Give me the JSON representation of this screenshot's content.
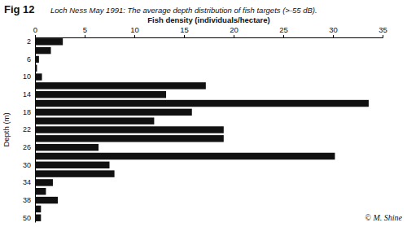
{
  "chart_data": {
    "type": "bar",
    "orientation": "horizontal",
    "title": "Fig 12",
    "subtitle": "Loch Ness May 1991: The average depth distribution of fish targets (>-55 dB).",
    "x_label": "Fish density (individuals/hectare)",
    "y_label": "Depth (m)",
    "annotation": "© M. Shine",
    "categories": [
      "2",
      null,
      "6",
      null,
      "10",
      null,
      "14",
      null,
      "18",
      null,
      "22",
      null,
      "26",
      null,
      "30",
      null,
      "34",
      null,
      "38",
      null,
      "50"
    ],
    "values": [
      2.8,
      1.6,
      0.4,
      0.2,
      0.7,
      17.2,
      13.2,
      33.6,
      15.8,
      12.0,
      19.0,
      19.0,
      6.4,
      30.2,
      7.5,
      8.0,
      1.8,
      1.1,
      2.3,
      0.6,
      0.6
    ],
    "color": "#111111",
    "xlim": [
      0,
      35
    ],
    "xticks": [
      0,
      5,
      10,
      15,
      20,
      25,
      30,
      35
    ],
    "grid": false
  }
}
